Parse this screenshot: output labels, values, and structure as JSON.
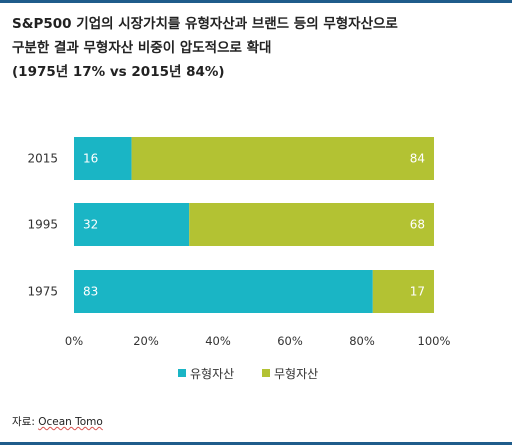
{
  "title": {
    "line1": "S&P500 기업의 시장가치를 유형자산과 브랜드 등의 무형자산으로",
    "line2": "구분한 결과 무형자산 비중이 압도적으로 확대",
    "line3": "(1975년 17% vs 2015년 84%)"
  },
  "source": {
    "label": "자료:",
    "name": "Ocean Tomo"
  },
  "colors": {
    "tangible": "#1ab5c5",
    "intangible": "#b3c233",
    "label_text": "#ffffff",
    "axis_text": "#333333",
    "rule": "#1f5c8b"
  },
  "chart_data": {
    "type": "bar",
    "orientation": "horizontal",
    "stacked": true,
    "categories": [
      "2015",
      "1995",
      "1975"
    ],
    "series": [
      {
        "name": "유형자산",
        "values": [
          16,
          32,
          83
        ]
      },
      {
        "name": "무형자산",
        "values": [
          84,
          68,
          17
        ]
      }
    ],
    "xlim": [
      0,
      100
    ],
    "x_ticks": [
      "0%",
      "20%",
      "40%",
      "60%",
      "80%",
      "100%"
    ],
    "grid": false,
    "legend_position": "bottom"
  }
}
